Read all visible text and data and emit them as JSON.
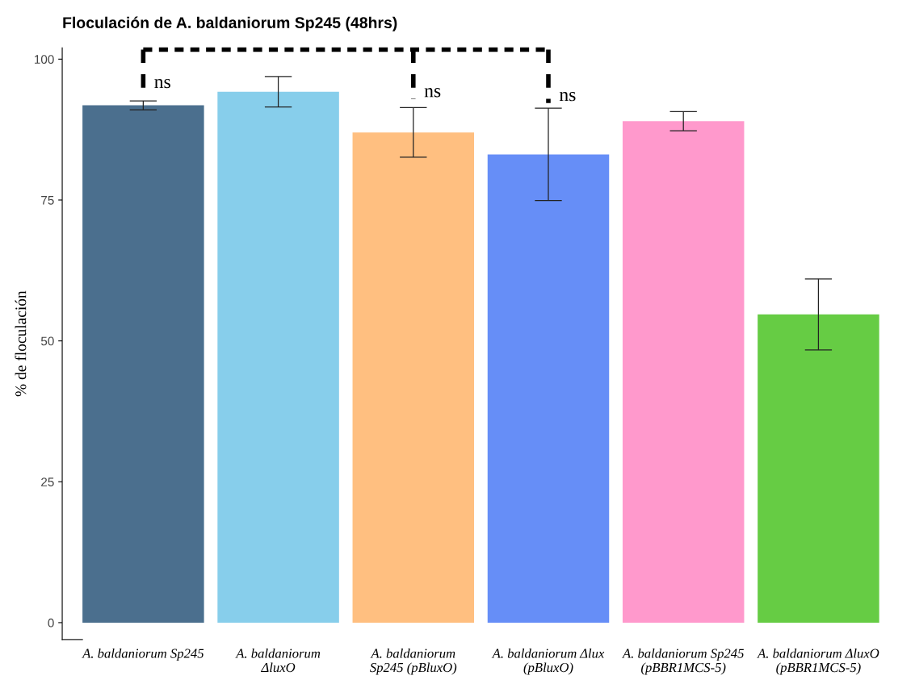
{
  "chart_data": {
    "type": "bar",
    "title": "Floculación de A. baldaniorum Sp245 (48hrs)",
    "ylabel": "% de floculación",
    "categories": [
      "A. baldaniorum Sp245",
      "A. baldaniorum\nΔluxO",
      "A. baldaniorum\nSp245 (pBluxO)",
      "A. baldaniorum Δlux\n(pBluxO)",
      "A. baldaniorum Sp245\n(pBBR1MCS-5)",
      "A. baldaniorum ΔluxO\n(pBBR1MCS-5)"
    ],
    "values": [
      91.8,
      94.2,
      87.0,
      83.1,
      89.0,
      54.7
    ],
    "errors": [
      0.8,
      2.7,
      4.4,
      8.2,
      1.7,
      6.3
    ],
    "colors": [
      "#4b6f8e",
      "#87ceeb",
      "#ffbf80",
      "#668ef7",
      "#ff99cc",
      "#66cc44"
    ],
    "ylim": [
      -3,
      102
    ],
    "yticks": [
      0,
      25,
      50,
      75,
      100
    ],
    "grid": false,
    "annotations": [
      "ns",
      "ns",
      "ns"
    ]
  }
}
